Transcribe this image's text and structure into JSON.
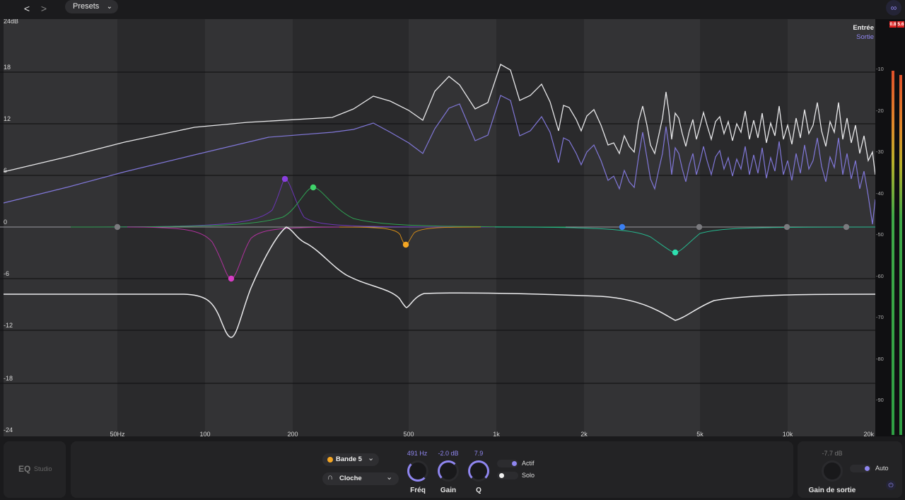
{
  "toolbar": {
    "back_label": "<",
    "forward_label": ">",
    "presets_label": "Presets"
  },
  "graph": {
    "db_labels": [
      "24dB",
      "18",
      "12",
      "6",
      "0",
      "-6",
      "-12",
      "-18",
      "-24"
    ],
    "freq_labels": [
      "50Hz",
      "100",
      "200",
      "500",
      "1k",
      "2k",
      "5k",
      "10k",
      "20k"
    ],
    "legend": {
      "input": "Entrée",
      "output": "Sortie"
    },
    "meter_labels": [
      "-10",
      "-20",
      "-30",
      "-40",
      "-50",
      "-60",
      "-70",
      "-80",
      "-90"
    ],
    "meter_peaks": [
      "0.8",
      "5.6"
    ],
    "colors": {
      "accent": "#8f86f0",
      "band_purple": "#8a3fe0",
      "band_green": "#3fd36a",
      "band_orange": "#f5a623",
      "band_pink": "#d63cc4",
      "band_blue": "#3b7ff2",
      "band_teal": "#2ee0b0"
    }
  },
  "brand": {
    "eq": "EQ",
    "studio": "Studio"
  },
  "band": {
    "selector_label": "Bande 5",
    "shape_label": "Cloche",
    "freq": {
      "value": "491 Hz",
      "label": "Fréq"
    },
    "gain": {
      "value": "-2.0 dB",
      "label": "Gain"
    },
    "q": {
      "value": "7.9",
      "label": "Q"
    },
    "active_label": "Actif",
    "solo_label": "Solo"
  },
  "output": {
    "value": "-7.7 dB",
    "label": "Gain de sortie",
    "auto_label": "Auto"
  }
}
